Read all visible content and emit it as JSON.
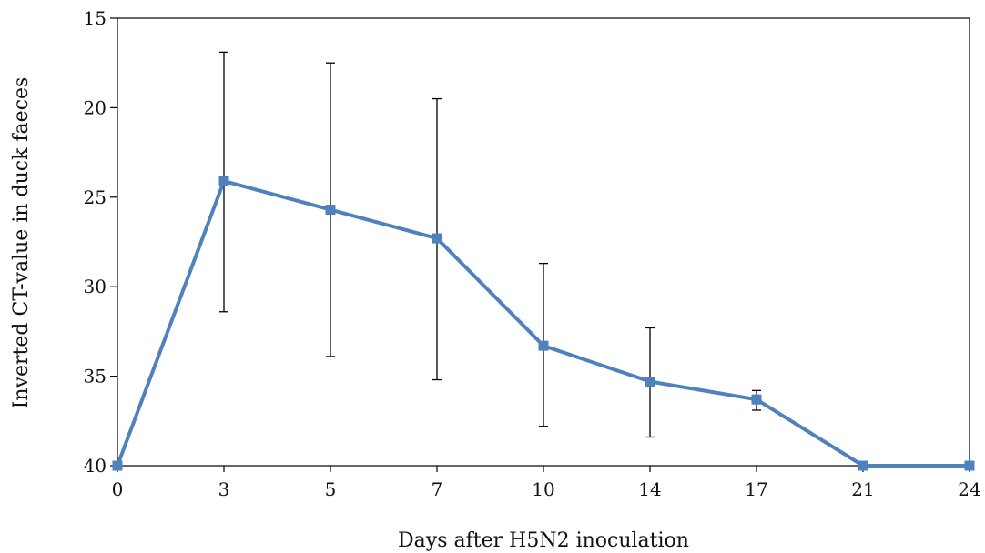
{
  "chart_data": {
    "type": "line",
    "title": "",
    "xlabel": "Days after H5N2 inoculation",
    "ylabel": "Inverted CT-value in duck faeces",
    "categories": [
      "0",
      "3",
      "5",
      "7",
      "10",
      "14",
      "17",
      "21",
      "24"
    ],
    "y_axis": {
      "min": 15,
      "max": 40,
      "inverted": true,
      "ticks": [
        15,
        20,
        25,
        30,
        35,
        40
      ]
    },
    "grid": false,
    "legend": "none",
    "series": [
      {
        "values": [
          40,
          24.1,
          25.7,
          27.3,
          33.3,
          35.3,
          36.3,
          40,
          40
        ],
        "error_low": [
          null,
          16.9,
          17.5,
          19.5,
          28.7,
          32.3,
          35.8,
          null,
          null
        ],
        "error_high": [
          null,
          31.4,
          33.9,
          35.2,
          37.8,
          38.4,
          36.9,
          null,
          null
        ],
        "color": "#4f81bd",
        "marker": "square"
      }
    ],
    "error_bar_color": "#000000"
  }
}
